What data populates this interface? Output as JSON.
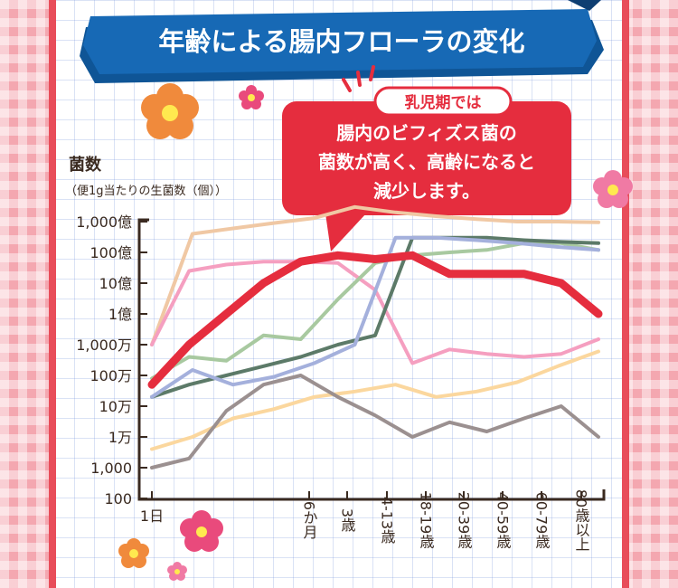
{
  "banner": {
    "title": "年齢による腸内フローラの変化"
  },
  "callout": {
    "heading": "乳児期では",
    "lines": [
      "腸内のビフィズス菌の",
      "菌数が高く、高齢になると",
      "減少します。"
    ]
  },
  "colors": {
    "banner_blue": "#1769b5",
    "callout_red": "#e52d3e",
    "accent_red": "#e8505b",
    "axis": "#3a2a20"
  },
  "chart_data": {
    "type": "line",
    "ylabel": "菌数",
    "ysublabel": "（便1g当たりの生菌数（個））",
    "y_scale": "log",
    "ylim": [
      100,
      100000000000
    ],
    "y_ticks": [
      {
        "value": 100000000000,
        "label": "1,000億"
      },
      {
        "value": 10000000000,
        "label": "100億"
      },
      {
        "value": 1000000000,
        "label": "10億"
      },
      {
        "value": 100000000,
        "label": "1億"
      },
      {
        "value": 10000000,
        "label": "1,000万"
      },
      {
        "value": 1000000,
        "label": "100万"
      },
      {
        "value": 100000,
        "label": "10万"
      },
      {
        "value": 10000,
        "label": "1万"
      },
      {
        "value": 1000,
        "label": "1,000"
      },
      {
        "value": 100,
        "label": "100"
      }
    ],
    "x_ticks": [
      "1日",
      "6か月",
      "3歳",
      "4-13歳",
      "18-19歳",
      "20-39歳",
      "40-59歳",
      "60-79歳",
      "80歳以上"
    ],
    "series": [
      {
        "color": "#f0c8a4",
        "values": [
          10000000,
          40000000000,
          60000000000,
          90000000000,
          130000000000,
          300000000000,
          200000000000,
          150000000000,
          120000000000,
          100000000000,
          100000000000,
          95000000000
        ]
      },
      {
        "color": "#f59fc0",
        "values": [
          10000000,
          2500000000,
          4000000000,
          5000000000,
          5000000000,
          4500000000,
          600000000,
          2500000,
          7000000,
          5000000,
          4000000,
          5000000,
          15000000
        ]
      },
      {
        "color": "#a8c9a0",
        "values": [
          800000,
          4000000,
          3000000,
          20000000,
          15000000,
          300000000,
          4500000000,
          8000000000,
          10000000000,
          12000000000,
          20000000000,
          20000000000,
          12000000000
        ]
      },
      {
        "color": "#5c7a68",
        "values": [
          200000,
          500000,
          1000000,
          2000000,
          4000000,
          10000000,
          20000000,
          30000000000,
          30000000000,
          30000000000,
          25000000000,
          22000000000,
          20000000000
        ]
      },
      {
        "color": "#a4b0dc",
        "values": [
          200000,
          1500000,
          500000,
          900000,
          2500000,
          10000000,
          30000000000,
          30000000000,
          25000000000,
          20000000000,
          15000000000,
          12000000000
        ]
      },
      {
        "color": "#fbd79e",
        "values": [
          4000,
          10000,
          40000,
          80000,
          200000,
          300000,
          500000,
          200000,
          300000,
          600000,
          2000000,
          6000000
        ]
      },
      {
        "color": "#9b9090",
        "values": [
          1000,
          2000,
          70000,
          500000,
          1000000,
          200000,
          50000,
          10000,
          30000,
          15000,
          40000,
          100000,
          10000
        ]
      },
      {
        "color": "#e52d3e",
        "values": [
          500000,
          10000000,
          100000000,
          1000000000,
          5000000000,
          8000000000,
          6000000000,
          8000000000,
          2000000000,
          2000000000,
          2000000000,
          1000000000,
          100000000
        ]
      }
    ]
  }
}
